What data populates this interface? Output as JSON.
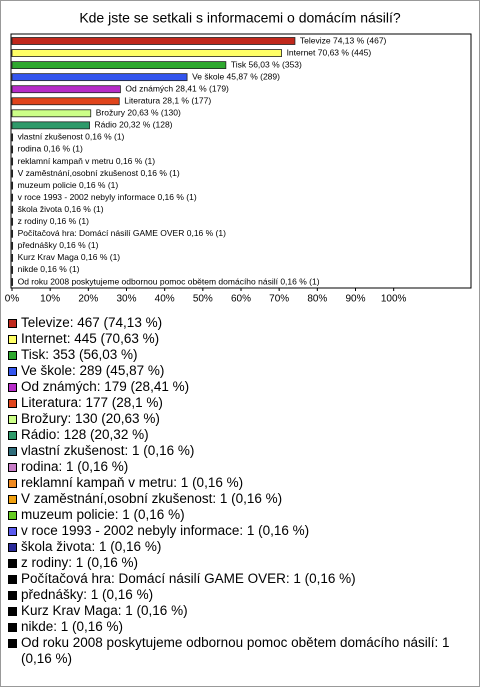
{
  "chart_data": {
    "type": "bar",
    "orientation": "horizontal",
    "title": "Kde jste se setkali s informacemi o domácím násilí?",
    "categories": [
      "Televize",
      "Internet",
      "Tisk",
      "Ve škole",
      "Od známých",
      "Literatura",
      "Brožury",
      "Rádio",
      "vlastní zkušenost",
      "rodina",
      "reklamní kampaň v metru",
      "V zaměstnání,osobní zkušenost",
      "muzeum policie",
      "v roce 1993 -  2002 nebyly informace",
      "škola života",
      "z rodiny",
      "Počítačová hra: Domácí násilí GAME OVER",
      "přednášky",
      "Kurz Krav Maga",
      "nikde",
      "Od roku 2008 poskytujeme odbornou pomoc obětem domácího násilí"
    ],
    "values": [
      74.13,
      70.63,
      56.03,
      45.87,
      28.41,
      28.1,
      20.63,
      20.32,
      0.16,
      0.16,
      0.16,
      0.16,
      0.16,
      0.16,
      0.16,
      0.16,
      0.16,
      0.16,
      0.16,
      0.16,
      0.16
    ],
    "value_labels": [
      "Televize 74,13 % (467)",
      "Internet 70,63 % (445)",
      "Tisk 56,03 % (353)",
      "Ve škole 45,87 % (289)",
      "Od známých 28,41 % (179)",
      "Literatura 28,1 % (177)",
      "Brožury 20,63 % (130)",
      "Rádio 20,32 % (128)",
      "vlastní zkušenost 0,16 % (1)",
      "rodina 0,16 % (1)",
      "reklamní kampaň v metru 0,16 % (1)",
      "V zaměstnání,osobní zkušenost 0,16 % (1)",
      "muzeum policie 0,16 % (1)",
      "v roce 1993 -  2002 nebyly informace 0,16 % (1)",
      "škola života 0,16 % (1)",
      "z rodiny 0,16 % (1)",
      "Počítačová hra: Domácí násilí GAME OVER 0,16 % (1)",
      "přednášky 0,16 % (1)",
      "Kurz Krav Maga 0,16 % (1)",
      "nikde 0,16 % (1)",
      "Od roku 2008 poskytujeme odbornou pomoc obětem domácího násilí 0,16 % (1)"
    ],
    "colors": [
      "#c0281c",
      "#ffff66",
      "#2ea82e",
      "#3355ee",
      "#b62cc8",
      "#e0441c",
      "#ccff88",
      "#2e9a6a",
      "#2e6c7a",
      "#c77cc7",
      "#f08a20",
      "#f0a010",
      "#66cc22",
      "#5a5aee",
      "#2a2a99",
      "#000000",
      "#000000",
      "#000000",
      "#000000",
      "#000000",
      "#000000"
    ],
    "legend": [
      "Televize: 467 (74,13 %)",
      "Internet: 445 (70,63 %)",
      "Tisk: 353 (56,03 %)",
      "Ve škole: 289 (45,87 %)",
      "Od známých: 179 (28,41 %)",
      "Literatura: 177 (28,1 %)",
      "Brožury: 130 (20,63 %)",
      "Rádio: 128 (20,32 %)",
      "vlastní zkušenost: 1 (0,16 %)",
      "rodina: 1 (0,16 %)",
      "reklamní kampaň v metru: 1 (0,16 %)",
      "V zaměstnání,osobní zkušenost: 1 (0,16 %)",
      "muzeum policie: 1 (0,16 %)",
      "v roce 1993 -  2002 nebyly informace: 1 (0,16 %)",
      "škola života: 1 (0,16 %)",
      "z rodiny: 1 (0,16 %)",
      "Počítačová hra: Domácí násilí GAME OVER: 1 (0,16 %)",
      "přednášky: 1 (0,16 %)",
      "Kurz Krav Maga: 1 (0,16 %)",
      "nikde: 1 (0,16 %)",
      "Od roku 2008 poskytujeme odbornou pomoc obětem domácího násilí: 1 (0,16 %)"
    ],
    "xlim": [
      0,
      120
    ],
    "xticks": [
      {
        "value": 0,
        "label": "0%"
      },
      {
        "value": 10,
        "label": "10%"
      },
      {
        "value": 20,
        "label": "20%"
      },
      {
        "value": 30,
        "label": "30%"
      },
      {
        "value": 40,
        "label": "40%"
      },
      {
        "value": 50,
        "label": "50%"
      },
      {
        "value": 60,
        "label": "60%"
      },
      {
        "value": 70,
        "label": "70%"
      },
      {
        "value": 80,
        "label": "80%"
      },
      {
        "value": 90,
        "label": "90%"
      },
      {
        "value": 100,
        "label": "100%"
      }
    ],
    "grid": false
  }
}
